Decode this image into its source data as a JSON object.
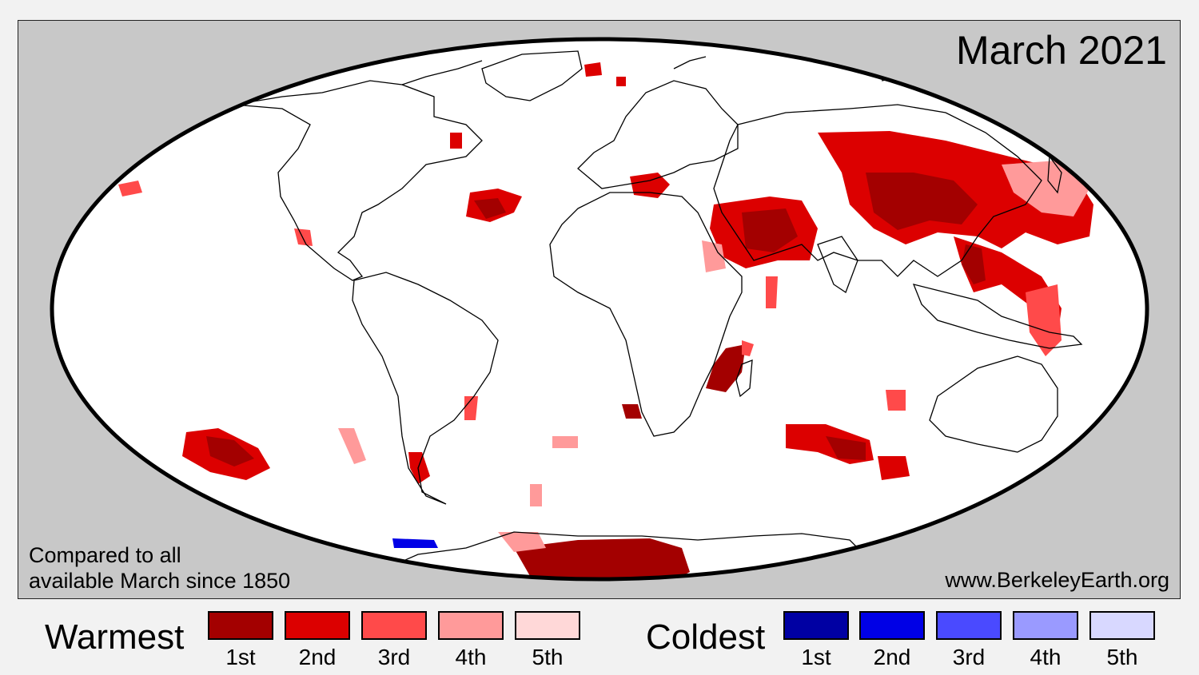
{
  "title": "March 2021",
  "note_lines": [
    "Compared to all",
    "available March since 1850"
  ],
  "source": "www.BerkeleyEarth.org",
  "legend": {
    "warm": {
      "label": "Warmest",
      "items": [
        {
          "rank": "1st",
          "color": "#a30000"
        },
        {
          "rank": "2nd",
          "color": "#dc0000"
        },
        {
          "rank": "3rd",
          "color": "#ff4a4a"
        },
        {
          "rank": "4th",
          "color": "#ff9a9a"
        },
        {
          "rank": "5th",
          "color": "#ffd8d8"
        }
      ]
    },
    "cold": {
      "label": "Coldest",
      "items": [
        {
          "rank": "1st",
          "color": "#0000a3"
        },
        {
          "rank": "2nd",
          "color": "#0000e6"
        },
        {
          "rank": "3rd",
          "color": "#4a4aff"
        },
        {
          "rank": "4th",
          "color": "#9a9aff"
        },
        {
          "rank": "5th",
          "color": "#d8d8ff"
        }
      ]
    }
  },
  "map": {
    "projection": "mollweide",
    "ocean_background": "#c8c8c8",
    "globe_fill": "#ffffff"
  }
}
